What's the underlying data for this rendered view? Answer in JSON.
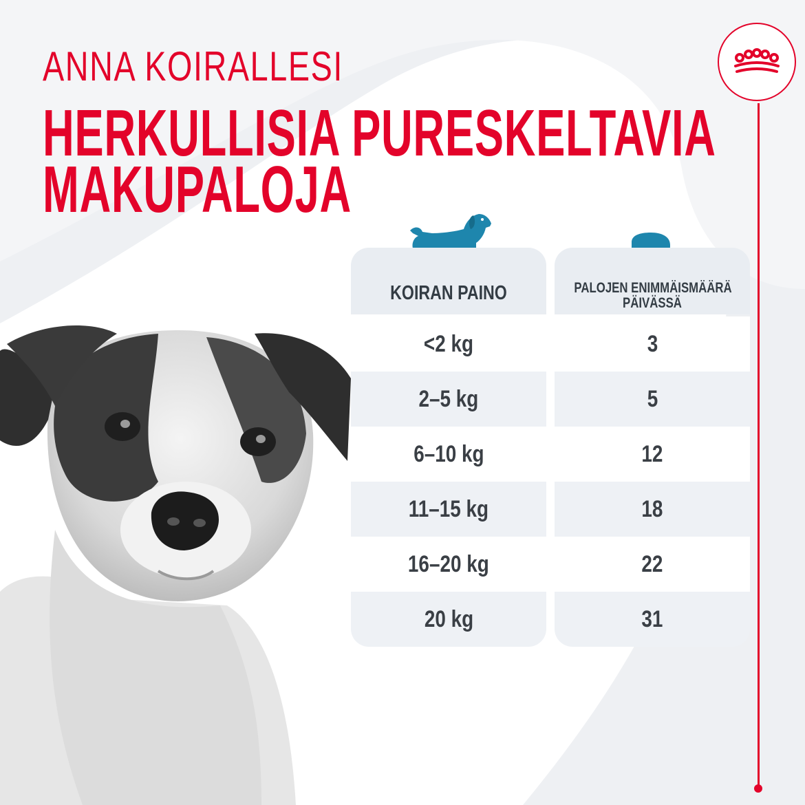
{
  "colors": {
    "brand_red": "#e3032a",
    "accent_blue": "#1e86ad",
    "header_gray": "#e9edf2",
    "row_alt": "#eef1f5",
    "row_white": "#ffffff",
    "background_gray": "#eef0f3"
  },
  "heading": {
    "line1": "ANNA KOIRALLESI",
    "line2": "HERKULLISIA PURESKELTAVIA",
    "line3": "MAKUPALOJA"
  },
  "brand": {
    "logo": "crown-icon"
  },
  "icons": {
    "dog": "dog-icon",
    "treat": "treat-icon"
  },
  "table": {
    "headers": {
      "weight": "KOIRAN PAINO",
      "max_line1": "PALOJEN ENIMMÄISMÄÄRÄ",
      "max_line2": "PÄIVÄSSÄ"
    },
    "rows": [
      {
        "weight": "<2 kg",
        "max": "3"
      },
      {
        "weight": "2–5 kg",
        "max": "5"
      },
      {
        "weight": "6–10 kg",
        "max": "12"
      },
      {
        "weight": "11–15 kg",
        "max": "18"
      },
      {
        "weight": "16–20 kg",
        "max": "22"
      },
      {
        "weight": "20 kg",
        "max": "31"
      }
    ]
  }
}
